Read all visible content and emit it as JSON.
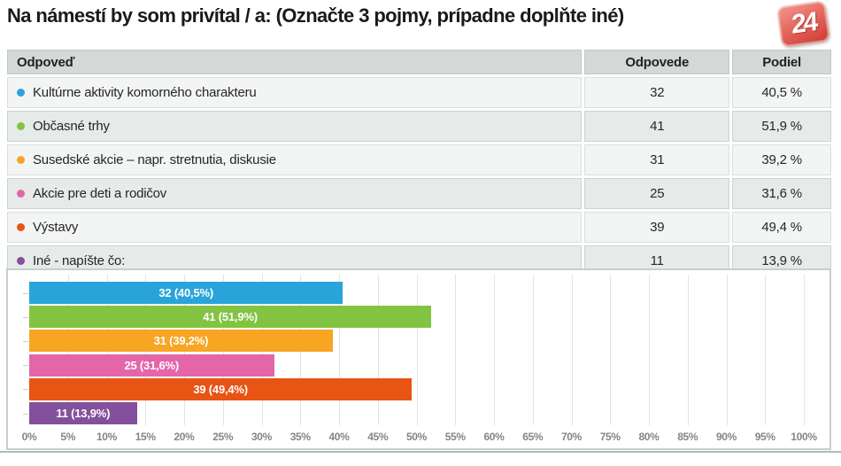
{
  "page": {
    "title": "Na námestí by som privítal / a: (Označte 3 pojmy, prípadne doplňte iné)",
    "logo_text": "24",
    "logo_color": "#d9453c"
  },
  "table": {
    "headers": {
      "answer": "Odpoveď",
      "responses": "Odpovede",
      "share": "Podiel"
    },
    "rows": [
      {
        "label": "Kultúrne aktivity komorného charakteru",
        "responses": "32",
        "share": "40,5 %",
        "color": "#29a4da"
      },
      {
        "label": "Občasné trhy",
        "responses": "41",
        "share": "51,9 %",
        "color": "#82c341"
      },
      {
        "label": "Susedské akcie – napr. stretnutia, diskusie",
        "responses": "31",
        "share": "39,2 %",
        "color": "#f7a522"
      },
      {
        "label": "Akcie pre deti a rodičov",
        "responses": "25",
        "share": "31,6 %",
        "color": "#e466a9"
      },
      {
        "label": "Výstavy",
        "responses": "39",
        "share": "49,4 %",
        "color": "#e75413"
      },
      {
        "label": "Iné - napíšte čo:",
        "responses": "11",
        "share": "13,9 %",
        "color": "#83509d"
      }
    ]
  },
  "chart_data": {
    "type": "bar",
    "orientation": "horizontal",
    "title": "",
    "xlabel": "",
    "ylabel": "",
    "xlim": [
      0,
      100
    ],
    "grid": true,
    "categories": [
      "Kultúrne aktivity komorného charakteru",
      "Občasné trhy",
      "Susedské akcie – napr. stretnutia, diskusie",
      "Akcie pre deti a rodičov",
      "Výstavy",
      "Iné - napíšte čo:"
    ],
    "counts": [
      32,
      41,
      31,
      25,
      39,
      11
    ],
    "values": [
      40.5,
      51.9,
      39.2,
      31.6,
      49.4,
      13.9
    ],
    "bar_labels": [
      "32 (40,5%)",
      "41 (51,9%)",
      "31 (39,2%)",
      "25 (31,6%)",
      "39 (49,4%)",
      "11 (13,9%)"
    ],
    "colors": [
      "#29a4da",
      "#82c341",
      "#f7a522",
      "#e466a9",
      "#e75413",
      "#83509d"
    ],
    "x_ticks": [
      "0%",
      "5%",
      "10%",
      "15%",
      "20%",
      "25%",
      "30%",
      "35%",
      "40%",
      "45%",
      "50%",
      "55%",
      "60%",
      "65%",
      "70%",
      "75%",
      "80%",
      "85%",
      "90%",
      "95%",
      "100%"
    ]
  }
}
